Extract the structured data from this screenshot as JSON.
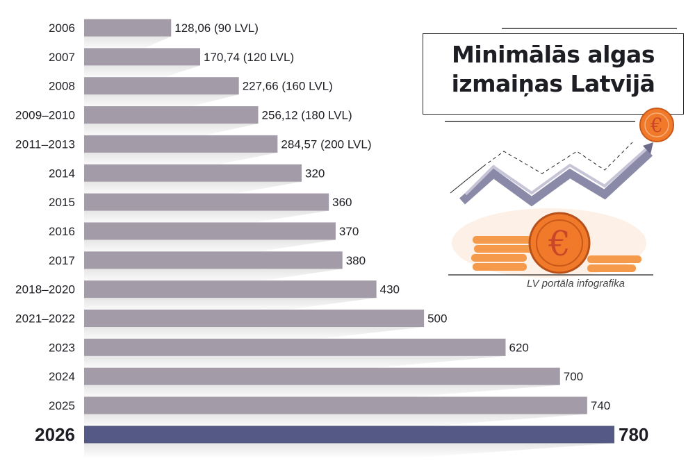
{
  "title": "Minimālās algas izmaiņas Latvijā",
  "title_lines": [
    "Minimālās algas",
    "izmaiņas Latvijā"
  ],
  "credit": "LV portāla infografika",
  "icons": [
    "euro-coin-icon",
    "trend-arrow-icon",
    "coin-stack-icon"
  ],
  "colors": {
    "bar": "#a39ba8",
    "highlight_bar": "#545a85",
    "coin": "#f07a2a",
    "text": "#1d1d24"
  },
  "chart_data": {
    "type": "bar",
    "orientation": "horizontal",
    "categories": [
      "2006",
      "2007",
      "2008",
      "2009–2010",
      "2011–2013",
      "2014",
      "2015",
      "2016",
      "2017",
      "2018–2020",
      "2021–2022",
      "2023",
      "2024",
      "2025",
      "2026"
    ],
    "values": [
      128.06,
      170.74,
      227.66,
      256.12,
      284.57,
      320,
      360,
      370,
      380,
      430,
      500,
      620,
      700,
      740,
      780
    ],
    "data_labels": [
      "128,06 (90 LVL)",
      "170,74 (120 LVL)",
      "227,66 (160 LVL)",
      "256,12 (180 LVL)",
      "284,57 (200 LVL)",
      "320",
      "360",
      "370",
      "380",
      "430",
      "500",
      "620",
      "700",
      "740",
      "780"
    ],
    "highlight": "2026",
    "xlim": [
      0,
      780
    ],
    "grid": false,
    "title": "Minimālās algas izmaiņas Latvijā"
  }
}
